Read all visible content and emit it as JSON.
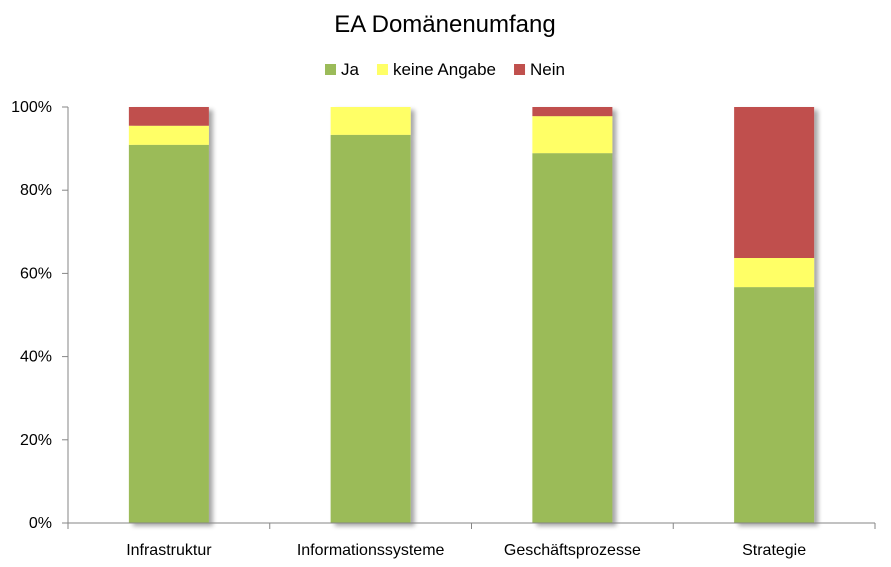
{
  "colors": {
    "ja": "#9BBB59",
    "keine_angabe": "#FFFF66",
    "nein": "#C0504D",
    "axis": "#868686",
    "shadow": "#bfbfbf"
  },
  "chart_data": {
    "type": "bar",
    "stacked": true,
    "percent": true,
    "title": "EA Domänenumfang",
    "xlabel": "",
    "ylabel": "",
    "ylim": [
      0,
      100
    ],
    "yticks": [
      "0%",
      "20%",
      "40%",
      "60%",
      "80%",
      "100%"
    ],
    "grid": false,
    "legend_position": "top",
    "categories": [
      "Infrastruktur",
      "Informationssysteme",
      "Geschäftsprozesse",
      "Strategie"
    ],
    "series": [
      {
        "name": "Ja",
        "color": "#9BBB59",
        "values": [
          90.9,
          93.3,
          88.9,
          56.7
        ]
      },
      {
        "name": "keine Angabe",
        "color": "#FFFF66",
        "values": [
          4.6,
          6.7,
          8.9,
          7.0
        ]
      },
      {
        "name": "Nein",
        "color": "#C0504D",
        "values": [
          4.5,
          0.0,
          2.2,
          36.3
        ]
      }
    ]
  }
}
